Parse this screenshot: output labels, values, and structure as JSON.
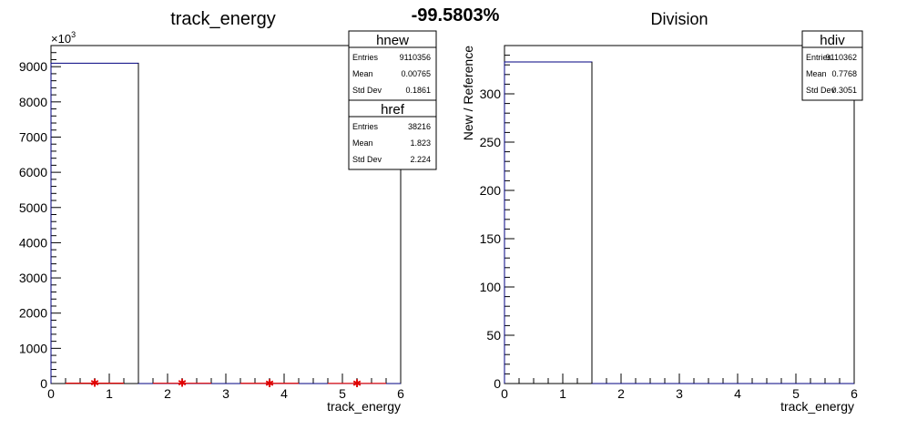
{
  "header": {
    "ratio_text": "-99.5803%"
  },
  "chart_data": [
    {
      "type": "bar",
      "title": "track_energy",
      "xlabel": "track_energy",
      "ylabel": "",
      "xlim": [
        0,
        6
      ],
      "ylim": [
        0,
        9600
      ],
      "y_exponent_label": "×10",
      "y_exponent_power": "3",
      "x_ticks": [
        "0",
        "1",
        "2",
        "3",
        "4",
        "5",
        "6"
      ],
      "y_ticks": [
        "0",
        "1000",
        "2000",
        "3000",
        "4000",
        "5000",
        "6000",
        "7000",
        "8000",
        "9000"
      ],
      "series": [
        {
          "name": "hnew",
          "color": "#000080",
          "style": "histogram",
          "bins": [
            {
              "x0": 0,
              "x1": 1.5,
              "y": 9100
            },
            {
              "x0": 1.5,
              "x1": 6,
              "y": 0
            }
          ]
        },
        {
          "name": "href",
          "color": "#e00000",
          "style": "markers",
          "points": [
            {
              "x": 0.75,
              "y": 10
            },
            {
              "x": 2.25,
              "y": 8
            },
            {
              "x": 3.75,
              "y": 6
            },
            {
              "x": 5.25,
              "y": 5
            }
          ]
        }
      ],
      "stats": [
        {
          "name": "hnew",
          "rows": [
            {
              "label": "Entries",
              "value": "9110356"
            },
            {
              "label": "Mean",
              "value": "0.00765"
            },
            {
              "label": "Std Dev",
              "value": "0.1861"
            }
          ]
        },
        {
          "name": "href",
          "rows": [
            {
              "label": "Entries",
              "value": "38216"
            },
            {
              "label": "Mean",
              "value": "1.823"
            },
            {
              "label": "Std Dev",
              "value": "2.224"
            }
          ]
        }
      ]
    },
    {
      "type": "bar",
      "title": "Division",
      "xlabel": "track_energy",
      "ylabel": "New / Reference",
      "xlim": [
        0,
        6
      ],
      "ylim": [
        0,
        350
      ],
      "x_ticks": [
        "0",
        "1",
        "2",
        "3",
        "4",
        "5",
        "6"
      ],
      "y_ticks": [
        "0",
        "50",
        "100",
        "150",
        "200",
        "250",
        "300"
      ],
      "series": [
        {
          "name": "hdiv",
          "color": "#000080",
          "style": "histogram",
          "bins": [
            {
              "x0": 0,
              "x1": 1.5,
              "y": 333
            },
            {
              "x0": 1.5,
              "x1": 6,
              "y": 0
            }
          ]
        }
      ],
      "stats": [
        {
          "name": "hdiv",
          "rows": [
            {
              "label": "Entries",
              "value": "9110362"
            },
            {
              "label": "Mean",
              "value": "0.7768"
            },
            {
              "label": "Std Dev",
              "value": "0.3051"
            }
          ]
        }
      ]
    }
  ]
}
